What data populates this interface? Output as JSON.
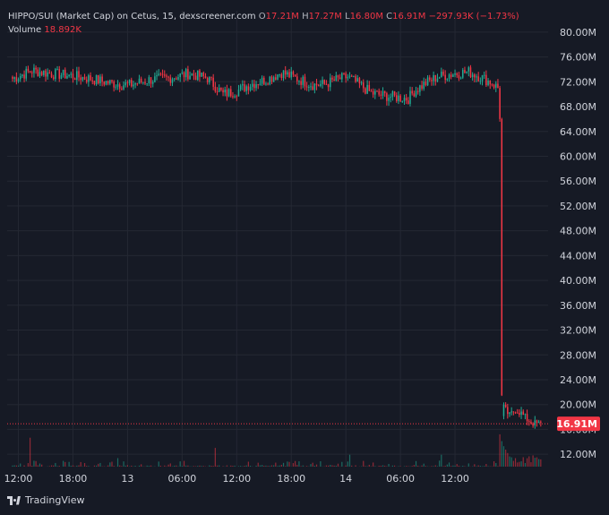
{
  "header": {
    "symbol": "HIPPO/SUI (Market Cap) on Cetus, 15, dexscreener.com",
    "o_label": "O",
    "o_value": "17.21M",
    "h_label": "H",
    "h_value": "17.27M",
    "l_label": "L",
    "l_value": "16.80M",
    "c_label": "C",
    "c_value": "16.91M",
    "change": "−297.93K (−1.73%)",
    "volume_label": "Volume",
    "volume_value": "18.892K"
  },
  "footer": {
    "brand": "TradingView"
  },
  "colors": {
    "up": "#22ab94",
    "down": "#f23645",
    "background": "#161a25",
    "grid": "#242833",
    "price_tag": "#f23645"
  },
  "chart_data": {
    "type": "candlestick",
    "interval": "15",
    "y_unit": "M",
    "ylim": [
      10,
      82
    ],
    "yticks": [
      "80.00M",
      "76.00M",
      "72.00M",
      "68.00M",
      "64.00M",
      "60.00M",
      "56.00M",
      "52.00M",
      "48.00M",
      "44.00M",
      "40.00M",
      "36.00M",
      "32.00M",
      "28.00M",
      "24.00M",
      "20.00M",
      "16.00M",
      "12.00M"
    ],
    "xticks": [
      "12:00",
      "18:00",
      "13",
      "06:00",
      "12:00",
      "18:00",
      "14",
      "06:00",
      "12:00"
    ],
    "last_price": 16.91,
    "last_price_label": "16.91M",
    "grid": true,
    "path": [
      [
        0,
        72.5
      ],
      [
        10,
        73.8
      ],
      [
        20,
        73.3
      ],
      [
        30,
        73.0
      ],
      [
        40,
        72.5
      ],
      [
        50,
        71.8
      ],
      [
        60,
        71.5
      ],
      [
        70,
        72.3
      ],
      [
        80,
        72.6
      ],
      [
        90,
        73.3
      ],
      [
        100,
        72.6
      ],
      [
        108,
        70.0
      ],
      [
        115,
        70.5
      ],
      [
        122,
        71.6
      ],
      [
        130,
        72.3
      ],
      [
        138,
        73.5
      ],
      [
        146,
        72.5
      ],
      [
        154,
        71.5
      ],
      [
        160,
        71.6
      ],
      [
        166,
        72.3
      ],
      [
        172,
        72.8
      ],
      [
        178,
        71.5
      ],
      [
        184,
        70.2
      ],
      [
        190,
        69.8
      ],
      [
        197,
        69.5
      ],
      [
        203,
        69.3
      ],
      [
        206,
        70.5
      ],
      [
        212,
        71.8
      ],
      [
        218,
        72.8
      ],
      [
        226,
        73.3
      ],
      [
        234,
        73.6
      ],
      [
        240,
        72.8
      ],
      [
        246,
        71.8
      ],
      [
        249,
        71.0
      ],
      [
        250,
        16.5
      ],
      [
        252,
        19.5
      ],
      [
        255,
        18.2
      ],
      [
        258,
        19.2
      ],
      [
        261,
        18.6
      ],
      [
        264,
        17.6
      ],
      [
        267,
        17.0
      ],
      [
        269,
        16.9
      ]
    ],
    "volume_spikes": [
      [
        9,
        0.85
      ],
      [
        54,
        0.25
      ],
      [
        104,
        0.55
      ],
      [
        173,
        0.35
      ],
      [
        220,
        0.35
      ],
      [
        250,
        0.95
      ],
      [
        251,
        0.75
      ],
      [
        252,
        0.6
      ],
      [
        253,
        0.5
      ],
      [
        254,
        0.4
      ],
      [
        255,
        0.3
      ]
    ]
  }
}
